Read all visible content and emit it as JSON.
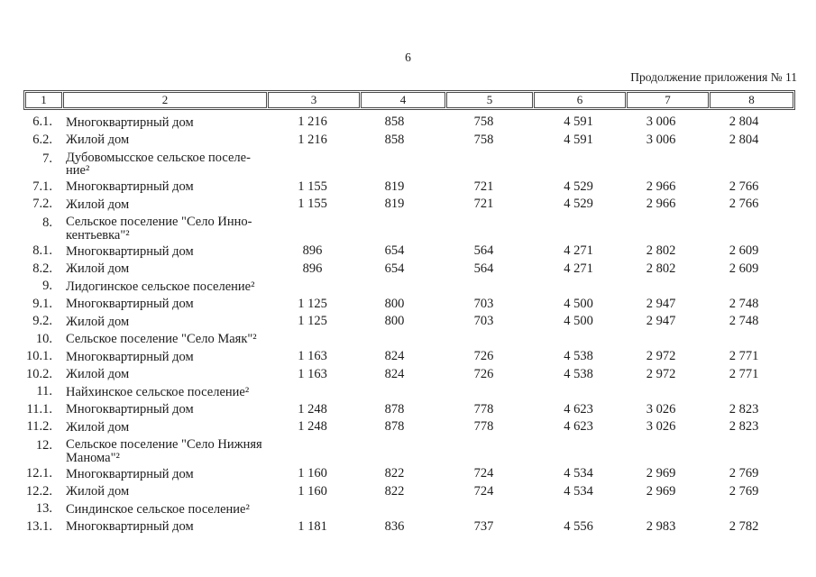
{
  "page": {
    "number": "6",
    "continuation": "Продолжение приложения № 11"
  },
  "table": {
    "columns": [
      "1",
      "2",
      "3",
      "4",
      "5",
      "6",
      "7",
      "8"
    ],
    "rows": [
      {
        "num": "6.1.",
        "name": "Многоквартирный дом",
        "values": [
          "1 216",
          "858",
          "758",
          "4 591",
          "3 006",
          "2 804"
        ]
      },
      {
        "num": "6.2.",
        "name": "Жилой дом",
        "values": [
          "1 216",
          "858",
          "758",
          "4 591",
          "3 006",
          "2 804"
        ]
      },
      {
        "num": "7.",
        "name": "Дубовомысское сельское поселе-\nние²",
        "values": []
      },
      {
        "num": "7.1.",
        "name": "Многоквартирный дом",
        "values": [
          "1 155",
          "819",
          "721",
          "4 529",
          "2 966",
          "2 766"
        ]
      },
      {
        "num": "7.2.",
        "name": "Жилой дом",
        "values": [
          "1 155",
          "819",
          "721",
          "4 529",
          "2 966",
          "2 766"
        ]
      },
      {
        "num": "8.",
        "name": "Сельское поселение \"Село Инно-\nкентьевка\"²",
        "values": []
      },
      {
        "num": "8.1.",
        "name": "Многоквартирный дом",
        "values": [
          "896",
          "654",
          "564",
          "4 271",
          "2 802",
          "2 609"
        ]
      },
      {
        "num": "8.2.",
        "name": "Жилой дом",
        "values": [
          "896",
          "654",
          "564",
          "4 271",
          "2 802",
          "2 609"
        ]
      },
      {
        "num": "9.",
        "name": "Лидогинское сельское поселение²",
        "values": []
      },
      {
        "num": "9.1.",
        "name": "Многоквартирный дом",
        "values": [
          "1 125",
          "800",
          "703",
          "4 500",
          "2 947",
          "2 748"
        ]
      },
      {
        "num": "9.2.",
        "name": "Жилой дом",
        "values": [
          "1 125",
          "800",
          "703",
          "4 500",
          "2 947",
          "2 748"
        ]
      },
      {
        "num": "10.",
        "name": "Сельское поселение \"Село Маяк\"²",
        "values": []
      },
      {
        "num": "10.1.",
        "name": "Многоквартирный дом",
        "values": [
          "1 163",
          "824",
          "726",
          "4 538",
          "2 972",
          "2 771"
        ]
      },
      {
        "num": "10.2.",
        "name": "Жилой дом",
        "values": [
          "1 163",
          "824",
          "726",
          "4 538",
          "2 972",
          "2 771"
        ]
      },
      {
        "num": "11.",
        "name": "Найхинское сельское поселение²",
        "values": []
      },
      {
        "num": "11.1.",
        "name": "Многоквартирный дом",
        "values": [
          "1 248",
          "878",
          "778",
          "4 623",
          "3 026",
          "2 823"
        ]
      },
      {
        "num": "11.2.",
        "name": "Жилой дом",
        "values": [
          "1 248",
          "878",
          "778",
          "4 623",
          "3 026",
          "2 823"
        ]
      },
      {
        "num": "12.",
        "name": "Сельское поселение \"Село Нижняя\nМанома\"²",
        "values": []
      },
      {
        "num": "12.1.",
        "name": "Многоквартирный дом",
        "values": [
          "1 160",
          "822",
          "724",
          "4 534",
          "2 969",
          "2 769"
        ]
      },
      {
        "num": "12.2.",
        "name": "Жилой дом",
        "values": [
          "1 160",
          "822",
          "724",
          "4 534",
          "2 969",
          "2 769"
        ]
      },
      {
        "num": "13.",
        "name": "Синдинское сельское поселение²",
        "values": []
      },
      {
        "num": "13.1.",
        "name": "Многоквартирный дом",
        "values": [
          "1 181",
          "836",
          "737",
          "4 556",
          "2 983",
          "2 782"
        ]
      }
    ]
  }
}
